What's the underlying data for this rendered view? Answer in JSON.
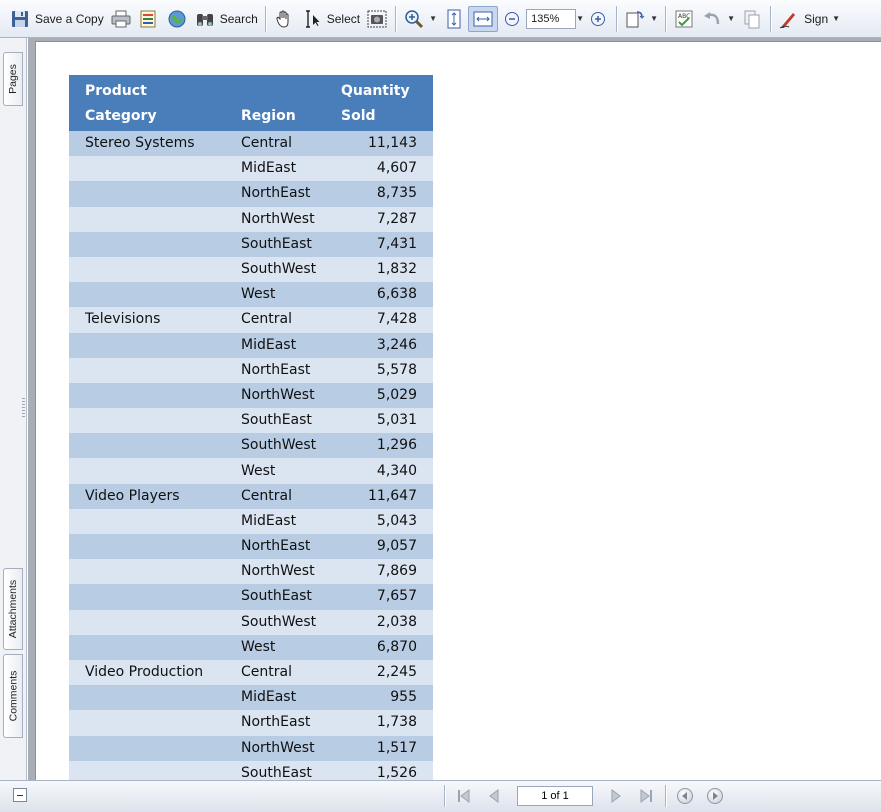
{
  "toolbar": {
    "save_copy_label": "Save a Copy",
    "search_label": "Search",
    "select_label": "Select",
    "zoom_value": "135%",
    "sign_label": "Sign"
  },
  "sidebar": {
    "tabs": [
      "Pages",
      "Attachments",
      "Comments"
    ]
  },
  "report": {
    "headers": {
      "category": [
        "Product",
        "Category"
      ],
      "region": "Region",
      "quantity": [
        "Quantity",
        "Sold"
      ]
    },
    "rows": [
      {
        "category": "Stereo Systems",
        "region": "Central",
        "qty": "11,143"
      },
      {
        "category": "",
        "region": "MidEast",
        "qty": "4,607"
      },
      {
        "category": "",
        "region": "NorthEast",
        "qty": "8,735"
      },
      {
        "category": "",
        "region": "NorthWest",
        "qty": "7,287"
      },
      {
        "category": "",
        "region": "SouthEast",
        "qty": "7,431"
      },
      {
        "category": "",
        "region": "SouthWest",
        "qty": "1,832"
      },
      {
        "category": "",
        "region": "West",
        "qty": "6,638"
      },
      {
        "category": "Televisions",
        "region": "Central",
        "qty": "7,428"
      },
      {
        "category": "",
        "region": "MidEast",
        "qty": "3,246"
      },
      {
        "category": "",
        "region": "NorthEast",
        "qty": "5,578"
      },
      {
        "category": "",
        "region": "NorthWest",
        "qty": "5,029"
      },
      {
        "category": "",
        "region": "SouthEast",
        "qty": "5,031"
      },
      {
        "category": "",
        "region": "SouthWest",
        "qty": "1,296"
      },
      {
        "category": "",
        "region": "West",
        "qty": "4,340"
      },
      {
        "category": "Video Players",
        "region": "Central",
        "qty": "11,647"
      },
      {
        "category": "",
        "region": "MidEast",
        "qty": "5,043"
      },
      {
        "category": "",
        "region": "NorthEast",
        "qty": "9,057"
      },
      {
        "category": "",
        "region": "NorthWest",
        "qty": "7,869"
      },
      {
        "category": "",
        "region": "SouthEast",
        "qty": "7,657"
      },
      {
        "category": "",
        "region": "SouthWest",
        "qty": "2,038"
      },
      {
        "category": "",
        "region": "West",
        "qty": "6,870"
      },
      {
        "category": "Video Production",
        "region": "Central",
        "qty": "2,245"
      },
      {
        "category": "",
        "region": "MidEast",
        "qty": "955"
      },
      {
        "category": "",
        "region": "NorthEast",
        "qty": "1,738"
      },
      {
        "category": "",
        "region": "NorthWest",
        "qty": "1,517"
      },
      {
        "category": "",
        "region": "SouthEast",
        "qty": "1,526"
      }
    ]
  },
  "statusbar": {
    "page_indicator": "1 of 1"
  },
  "colors": {
    "header_bg": "#4a7ebb",
    "row_dark": "#b8cce4",
    "row_light": "#dbe5f1"
  }
}
